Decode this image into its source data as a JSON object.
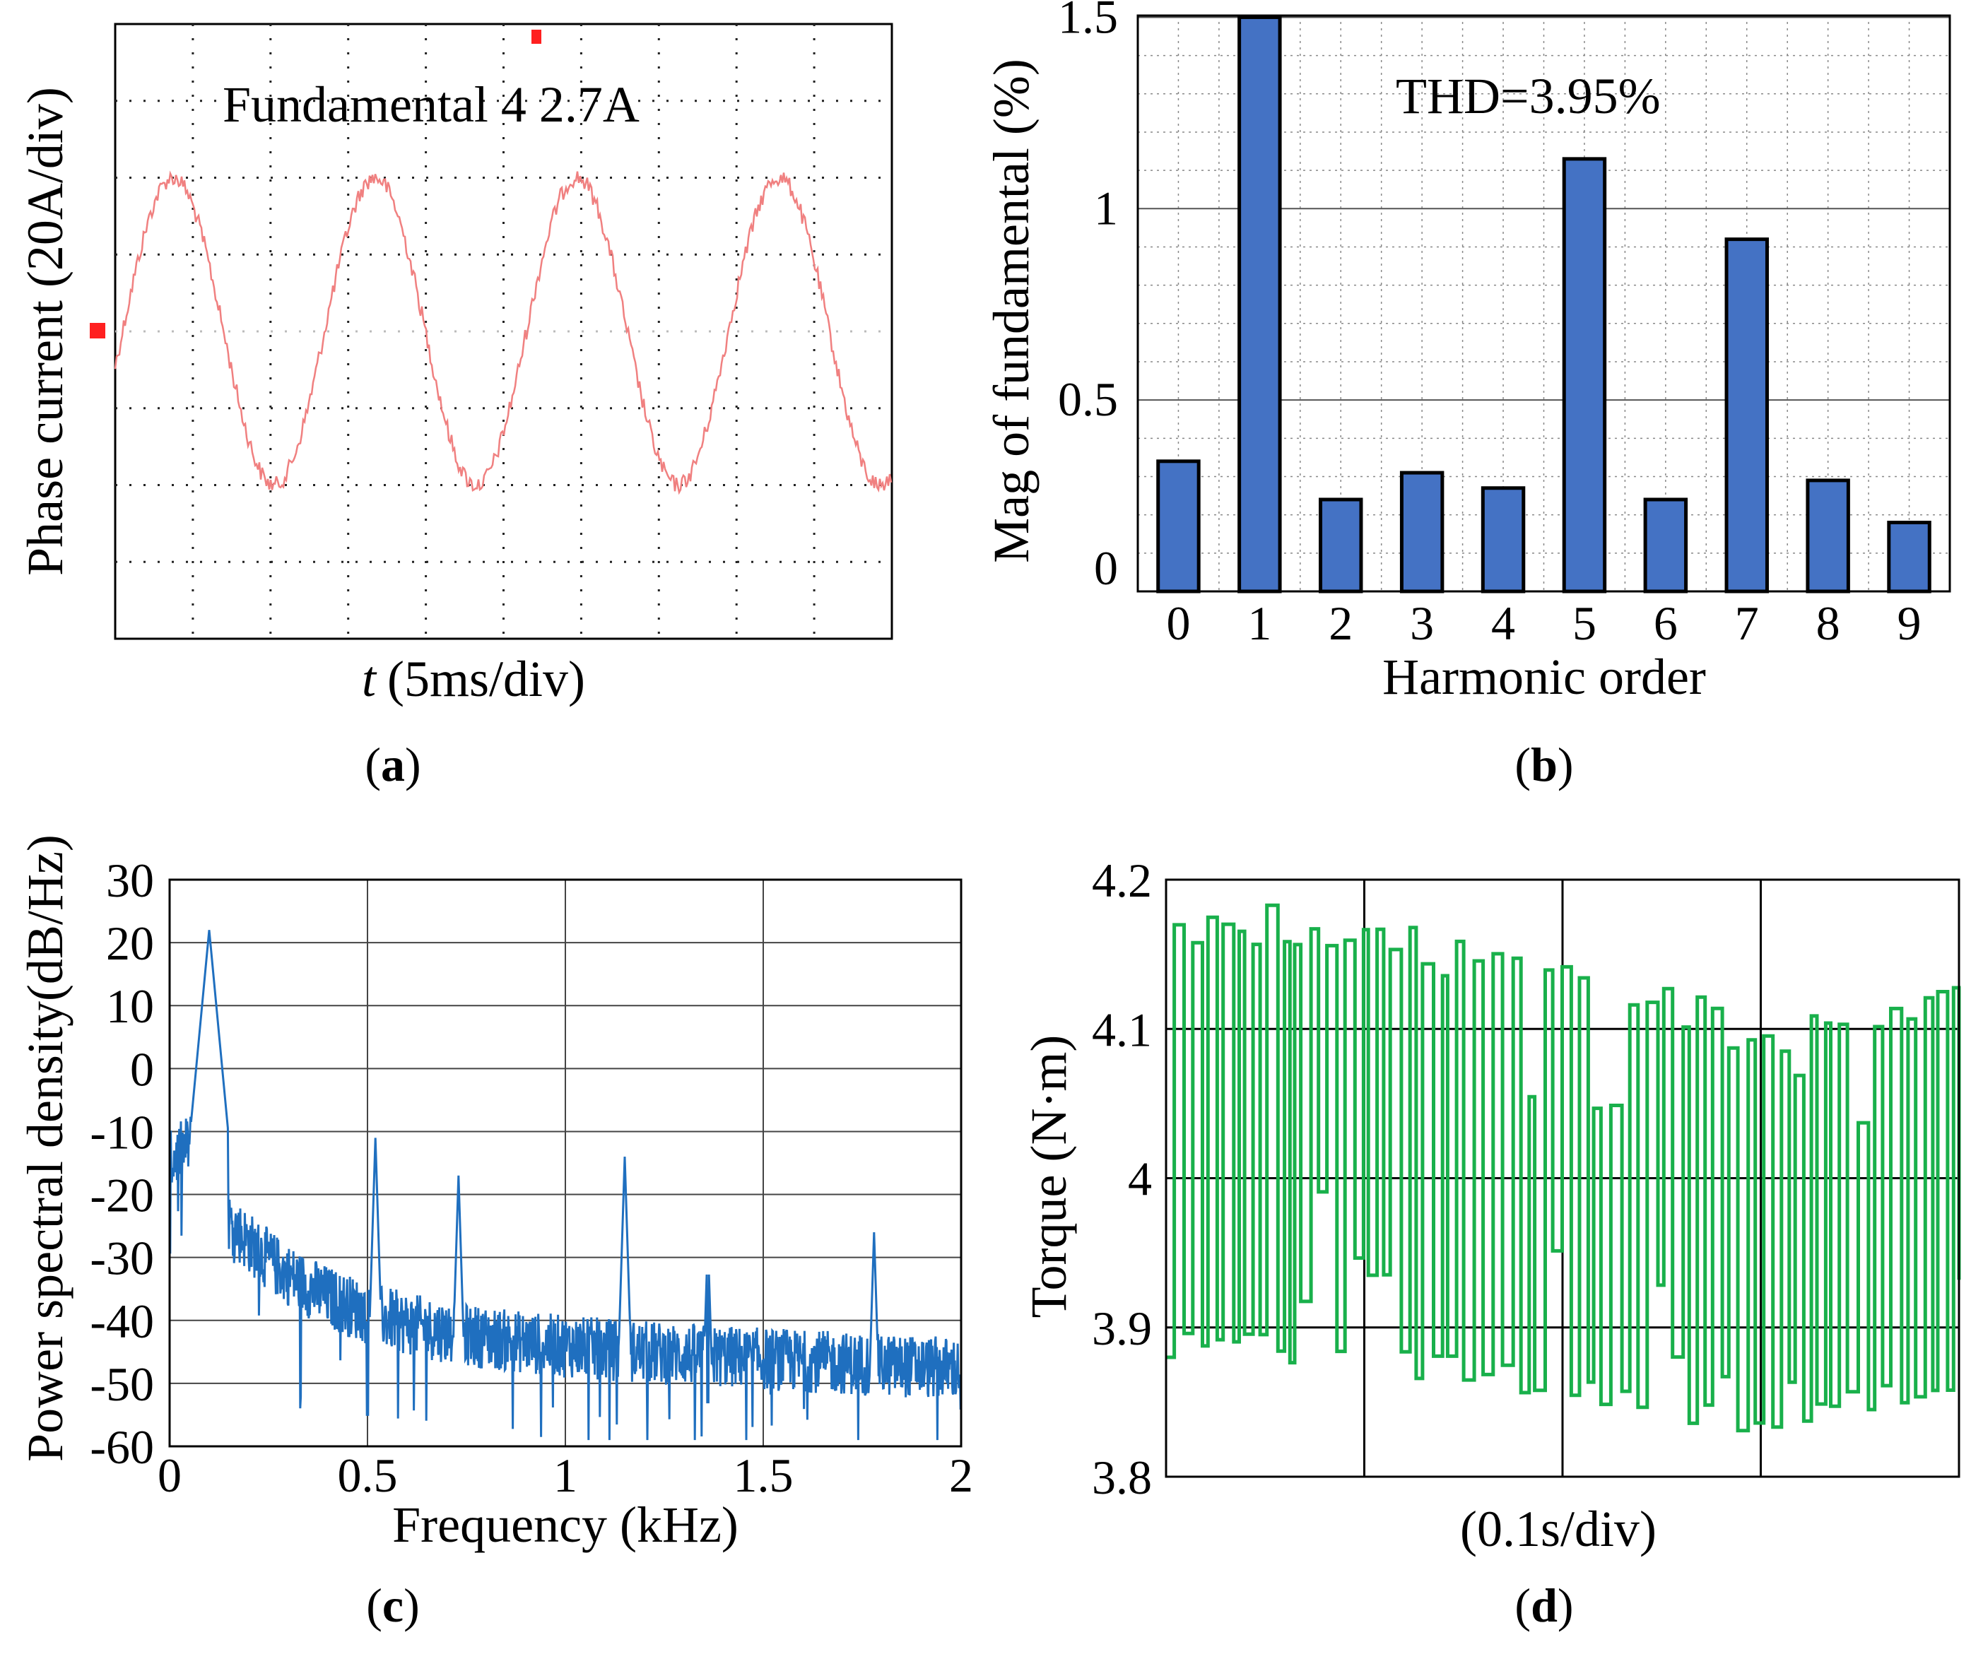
{
  "panels": {
    "a": {
      "caption": "(a)",
      "letter": "a"
    },
    "b": {
      "caption": "(b)",
      "letter": "b"
    },
    "c": {
      "caption": "(c)",
      "letter": "c"
    },
    "d": {
      "caption": "(d)",
      "letter": "d"
    }
  },
  "chart_data": [
    {
      "id": "a",
      "type": "line",
      "ylabel": "Phase current (20A/div)",
      "xlabel_italic": "t",
      "xlabel": "(5ms/div)",
      "annotation": "Fundamental 4 2.7A",
      "divisions": {
        "x": 10,
        "y": 8
      },
      "series": [
        {
          "period_div": 2.6,
          "amplitude_div": 2.0,
          "offset_div": 0,
          "color": "#f08080"
        }
      ]
    },
    {
      "id": "b",
      "type": "bar",
      "categories": [
        "0",
        "1",
        "2",
        "3",
        "4",
        "5",
        "6",
        "7",
        "8",
        "9"
      ],
      "values": [
        0.34,
        1.5,
        0.24,
        0.31,
        0.27,
        1.13,
        0.24,
        0.92,
        0.29,
        0.18
      ],
      "ylabel": "Mag of fundamental (%)",
      "xlabel": "Harmonic order",
      "annotation": "THD=3.95%",
      "yticks": [
        "0",
        "0.5",
        "1",
        "1.5"
      ],
      "ylim": [
        0,
        1.5
      ],
      "grid": true,
      "bar_color": "#4472c4"
    },
    {
      "id": "c",
      "type": "line",
      "xlabel": "Frequency (kHz)",
      "ylabel": "Power spectral density(dB/Hz)",
      "xticks": [
        "0",
        "0.5",
        "1",
        "1.5",
        "2"
      ],
      "yticks": [
        "30",
        "20",
        "10",
        "0",
        "-10",
        "-20",
        "-30",
        "-40",
        "-50",
        "-60"
      ],
      "xlim": [
        0,
        2
      ],
      "ylim": [
        -60,
        30
      ],
      "grid": true,
      "color": "#1f6fbf",
      "peaks": [
        {
          "x": 0.1,
          "y": 22
        },
        {
          "x": 0.52,
          "y": -11
        },
        {
          "x": 0.73,
          "y": -17
        },
        {
          "x": 1.15,
          "y": -14
        },
        {
          "x": 1.36,
          "y": -27
        },
        {
          "x": 1.78,
          "y": -26
        }
      ],
      "dips": [
        {
          "x": 0.5,
          "y": -55
        },
        {
          "x": 1.36,
          "y": -53
        },
        {
          "x": 2.0,
          "y": -54
        }
      ]
    },
    {
      "id": "d",
      "type": "line",
      "ylabel": "Torque (N·m)",
      "xlabel": "(0.1s/div)",
      "yticks": [
        "4.2",
        "4.1",
        "4",
        "3.9",
        "3.8"
      ],
      "ylim": [
        3.8,
        4.2
      ],
      "xdivisions": 4,
      "grid": true,
      "color": "#19b04b",
      "upper_envelope": [
        [
          0,
          4.19
        ],
        [
          0.25,
          4.18
        ],
        [
          0.5,
          4.15
        ],
        [
          0.75,
          4.11
        ],
        [
          1.0,
          4.13
        ]
      ],
      "lower_envelope": [
        [
          0,
          3.88
        ],
        [
          0.25,
          3.87
        ],
        [
          0.5,
          3.85
        ],
        [
          0.75,
          3.82
        ],
        [
          1.0,
          3.86
        ]
      ]
    }
  ]
}
